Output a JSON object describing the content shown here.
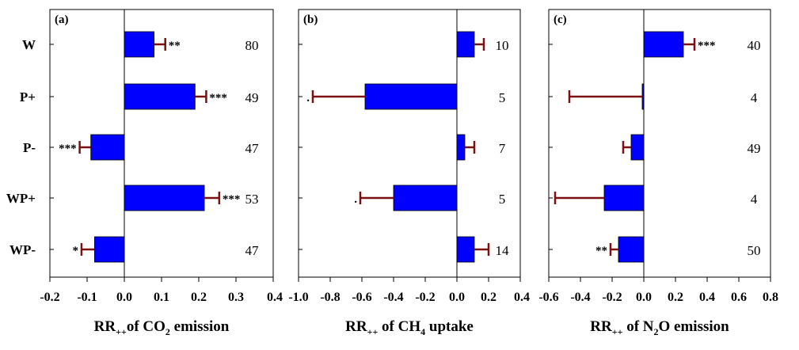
{
  "categories": [
    "W",
    "P+",
    "P-",
    "WP+",
    "WP-"
  ],
  "colors": {
    "bar": "#0000ff",
    "bar_edge": "#000000",
    "error": "#7a1010",
    "text": "#000000"
  },
  "chart_data": [
    {
      "type": "bar",
      "orientation": "horizontal",
      "panel_label": "(a)",
      "xlabel_main": "RR",
      "xlabel_sub": "++",
      "xlabel_rest_1": "of CO",
      "xlabel_sub2": "2",
      "xlabel_rest_2": " emission",
      "xlim": [
        -0.2,
        0.4
      ],
      "xticks": [
        -0.2,
        -0.1,
        0.0,
        0.1,
        0.2,
        0.3
      ],
      "xtick_labels": [
        "-0.2",
        "-0.1",
        "0.0",
        "0.1",
        "0.2",
        "0.3"
      ],
      "categories": [
        "W",
        "P+",
        "P-",
        "WP+",
        "WP-"
      ],
      "values": [
        0.08,
        0.19,
        -0.09,
        0.215,
        -0.08
      ],
      "error": [
        0.03,
        0.03,
        0.03,
        0.04,
        0.035
      ],
      "significance": [
        "**",
        "***",
        "***",
        "***",
        "*"
      ],
      "n": [
        "80",
        "49",
        "47",
        "53",
        "47"
      ]
    },
    {
      "type": "bar",
      "orientation": "horizontal",
      "panel_label": "(b)",
      "xlabel_main": "RR",
      "xlabel_sub": "++",
      "xlabel_rest_1": " of CH",
      "xlabel_sub2": "4",
      "xlabel_rest_2": " uptake",
      "xlim": [
        -1.0,
        0.4
      ],
      "xticks": [
        -1.0,
        -0.8,
        -0.6,
        -0.4,
        -0.2,
        0.0,
        0.2
      ],
      "xtick_labels": [
        "-1.0",
        "-0.8",
        "-0.6",
        "-0.4",
        "-0.2",
        "0.0",
        "0.2"
      ],
      "categories": [
        "W",
        "P+",
        "P-",
        "WP+",
        "WP-"
      ],
      "values": [
        0.11,
        -0.58,
        0.05,
        -0.4,
        0.11
      ],
      "error": [
        0.06,
        0.33,
        0.06,
        0.21,
        0.09
      ],
      "significance": [
        "",
        ".",
        "",
        ".",
        ""
      ],
      "n": [
        "10",
        "5",
        "7",
        "5",
        "14"
      ]
    },
    {
      "type": "bar",
      "orientation": "horizontal",
      "panel_label": "(c)",
      "xlabel_main": "RR",
      "xlabel_sub": "++",
      "xlabel_rest_1": " of N",
      "xlabel_sub2": "2",
      "xlabel_rest_2": "O emission",
      "xlim": [
        -0.6,
        0.8
      ],
      "xticks": [
        -0.6,
        -0.4,
        -0.2,
        0.0,
        0.2,
        0.4,
        0.6,
        0.8
      ],
      "xtick_labels": [
        "-0.6",
        "-0.4",
        "-0.2",
        "0.0",
        "0.2",
        "0.4",
        "0.6",
        "0.8"
      ],
      "categories": [
        "W",
        "P+",
        "P-",
        "WP+",
        "WP-"
      ],
      "values": [
        0.25,
        -0.01,
        -0.08,
        -0.25,
        -0.16
      ],
      "error": [
        0.07,
        0.46,
        0.05,
        0.31,
        0.05
      ],
      "significance": [
        "***",
        "",
        "",
        "",
        "**"
      ],
      "n": [
        "40",
        "4",
        "49",
        "4",
        "50"
      ]
    }
  ],
  "trailing_tick_label": "0.4"
}
